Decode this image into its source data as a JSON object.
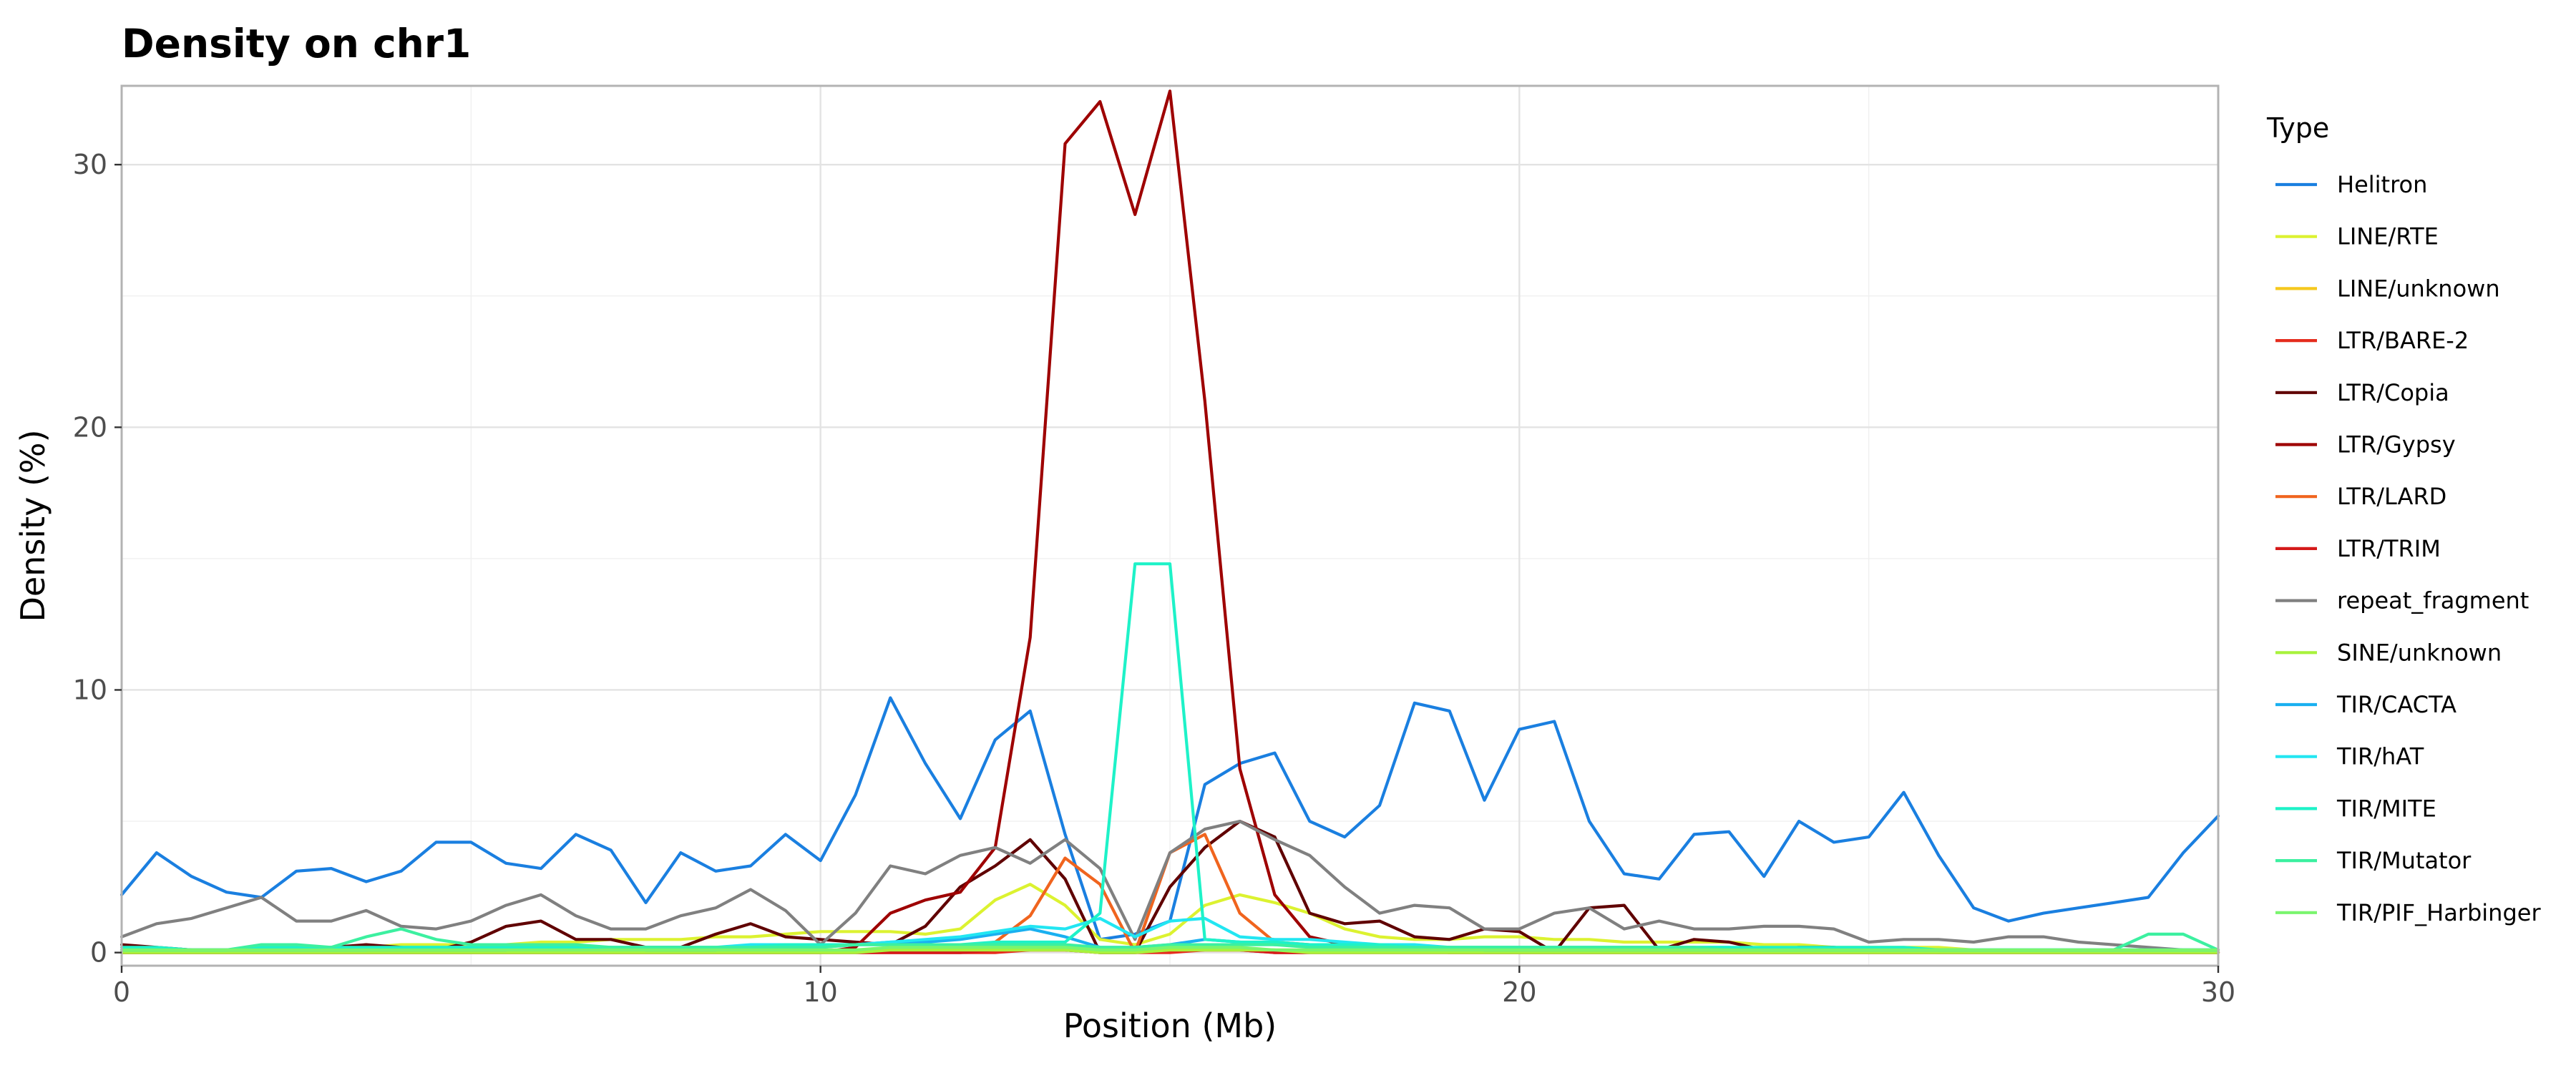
{
  "chart_data": {
    "type": "line",
    "title": "Density on chr1",
    "xlabel": "Position (Mb)",
    "ylabel": "Density (%)",
    "xlim": [
      0,
      30
    ],
    "ylim": [
      -0.5,
      33
    ],
    "xticks": [
      0,
      10,
      20,
      30
    ],
    "yticks": [
      0,
      10,
      20,
      30
    ],
    "grid": true,
    "legend": {
      "title": "Type",
      "placement": "right"
    },
    "x": [
      0,
      0.5,
      1,
      1.5,
      2,
      2.5,
      3,
      3.5,
      4,
      4.5,
      5,
      5.5,
      6,
      6.5,
      7,
      7.5,
      8,
      8.5,
      9,
      9.5,
      10,
      10.5,
      11,
      11.5,
      12,
      12.5,
      13,
      13.5,
      14,
      14.5,
      15,
      15.5,
      16,
      16.5,
      17,
      17.5,
      18,
      18.5,
      19,
      19.5,
      20,
      20.5,
      21,
      21.5,
      22,
      22.5,
      23,
      23.5,
      24,
      24.5,
      25,
      25.5,
      26,
      26.5,
      27,
      27.5,
      28,
      28.5,
      29,
      29.5,
      30
    ],
    "series": [
      {
        "name": "Helitron",
        "color": "#1a7fe0",
        "values": [
          2.2,
          3.8,
          2.9,
          2.3,
          2.1,
          3.1,
          3.2,
          2.7,
          3.1,
          4.2,
          4.2,
          3.4,
          3.2,
          4.5,
          3.9,
          1.9,
          3.8,
          3.1,
          3.3,
          4.5,
          3.5,
          6.0,
          9.7,
          7.2,
          5.1,
          8.1,
          9.2,
          4.5,
          0.5,
          0.7,
          1.2,
          6.4,
          7.2,
          7.6,
          5.0,
          4.4,
          5.6,
          9.5,
          9.2,
          5.8,
          8.5,
          8.8,
          5.0,
          3.0,
          2.8,
          4.5,
          4.6,
          2.9,
          5.0,
          4.2,
          4.4,
          6.1,
          3.7,
          1.7,
          1.2,
          1.5,
          1.7,
          1.9,
          2.1,
          3.8,
          5.2
        ]
      },
      {
        "name": "LINE/RTE",
        "color": "#dcf230",
        "values": [
          0.1,
          0.1,
          0.1,
          0.1,
          0.1,
          0.1,
          0.1,
          0.2,
          0.3,
          0.3,
          0.3,
          0.3,
          0.4,
          0.4,
          0.5,
          0.5,
          0.5,
          0.6,
          0.6,
          0.7,
          0.8,
          0.8,
          0.8,
          0.7,
          0.9,
          2.0,
          2.6,
          1.8,
          0.5,
          0.3,
          0.7,
          1.8,
          2.2,
          1.9,
          1.5,
          0.9,
          0.6,
          0.5,
          0.5,
          0.6,
          0.6,
          0.5,
          0.5,
          0.4,
          0.4,
          0.4,
          0.4,
          0.3,
          0.3,
          0.2,
          0.2,
          0.2,
          0.2,
          0.1,
          0.1,
          0.1,
          0.1,
          0.1,
          0.1,
          0.1,
          0.1
        ]
      },
      {
        "name": "LINE/unknown",
        "color": "#f5c81e",
        "values": [
          0.0,
          0.0,
          0.0,
          0.0,
          0.0,
          0.0,
          0.0,
          0.0,
          0.0,
          0.0,
          0.0,
          0.0,
          0.0,
          0.0,
          0.0,
          0.0,
          0.0,
          0.0,
          0.0,
          0.0,
          0.1,
          0.1,
          0.1,
          0.1,
          0.1,
          0.1,
          0.1,
          0.1,
          0.0,
          0.0,
          0.1,
          0.1,
          0.1,
          0.1,
          0.1,
          0.1,
          0.1,
          0.1,
          0.0,
          0.0,
          0.0,
          0.0,
          0.0,
          0.0,
          0.0,
          0.0,
          0.0,
          0.0,
          0.0,
          0.0,
          0.0,
          0.0,
          0.0,
          0.0,
          0.0,
          0.0,
          0.0,
          0.0,
          0.0,
          0.0,
          0.0
        ]
      },
      {
        "name": "LTR/BARE-2",
        "color": "#e52d1e",
        "values": [
          0.0,
          0.0,
          0.0,
          0.0,
          0.0,
          0.0,
          0.0,
          0.0,
          0.0,
          0.0,
          0.0,
          0.0,
          0.0,
          0.0,
          0.0,
          0.0,
          0.0,
          0.0,
          0.0,
          0.0,
          0.0,
          0.0,
          0.0,
          0.0,
          0.0,
          0.0,
          0.1,
          0.1,
          0.0,
          0.0,
          0.0,
          0.1,
          0.1,
          0.0,
          0.0,
          0.0,
          0.0,
          0.0,
          0.0,
          0.0,
          0.0,
          0.0,
          0.0,
          0.0,
          0.0,
          0.0,
          0.0,
          0.0,
          0.0,
          0.0,
          0.0,
          0.0,
          0.0,
          0.0,
          0.0,
          0.0,
          0.0,
          0.0,
          0.0,
          0.0,
          0.0
        ]
      },
      {
        "name": "LTR/Copia",
        "color": "#600000",
        "values": [
          0.3,
          0.2,
          0.1,
          0.1,
          0.1,
          0.1,
          0.2,
          0.3,
          0.2,
          0.1,
          0.4,
          1.0,
          1.2,
          0.5,
          0.5,
          0.2,
          0.2,
          0.7,
          1.1,
          0.6,
          0.5,
          0.4,
          0.3,
          1.0,
          2.5,
          3.3,
          4.3,
          2.8,
          0.0,
          0.0,
          2.5,
          4.0,
          5.0,
          4.4,
          1.5,
          1.1,
          1.2,
          0.6,
          0.5,
          0.9,
          0.8,
          0.0,
          1.7,
          1.8,
          0.1,
          0.5,
          0.4,
          0.1,
          0.2,
          0.2,
          0.1,
          0.1,
          0.0,
          0.0,
          0.0,
          0.0,
          0.0,
          0.0,
          0.0,
          0.0,
          0.0
        ]
      },
      {
        "name": "LTR/Gypsy",
        "color": "#9e0000",
        "values": [
          0.0,
          0.0,
          0.0,
          0.0,
          0.0,
          0.0,
          0.0,
          0.0,
          0.0,
          0.0,
          0.0,
          0.0,
          0.0,
          0.0,
          0.0,
          0.0,
          0.0,
          0.0,
          0.0,
          0.0,
          0.0,
          0.2,
          1.5,
          2.0,
          2.3,
          4.0,
          12.0,
          30.8,
          32.4,
          28.1,
          32.8,
          21.0,
          7.0,
          2.2,
          0.6,
          0.3,
          0.2,
          0.1,
          0.0,
          0.0,
          0.0,
          0.0,
          0.0,
          0.0,
          0.0,
          0.0,
          0.0,
          0.0,
          0.0,
          0.0,
          0.0,
          0.0,
          0.0,
          0.0,
          0.0,
          0.0,
          0.0,
          0.0,
          0.0,
          0.0,
          0.0
        ]
      },
      {
        "name": "LTR/LARD",
        "color": "#f0641e",
        "values": [
          0.0,
          0.0,
          0.0,
          0.0,
          0.0,
          0.0,
          0.0,
          0.0,
          0.0,
          0.0,
          0.0,
          0.0,
          0.0,
          0.0,
          0.0,
          0.0,
          0.0,
          0.0,
          0.0,
          0.0,
          0.0,
          0.1,
          0.1,
          0.1,
          0.2,
          0.4,
          1.4,
          3.6,
          2.6,
          0.0,
          3.8,
          4.5,
          1.5,
          0.4,
          0.3,
          0.2,
          0.1,
          0.1,
          0.0,
          0.0,
          0.0,
          0.0,
          0.0,
          0.0,
          0.0,
          0.0,
          0.0,
          0.0,
          0.0,
          0.0,
          0.0,
          0.0,
          0.0,
          0.0,
          0.0,
          0.0,
          0.0,
          0.0,
          0.0,
          0.0,
          0.0
        ]
      },
      {
        "name": "LTR/TRIM",
        "color": "#d41a1a",
        "values": [
          0.0,
          0.0,
          0.0,
          0.0,
          0.0,
          0.0,
          0.0,
          0.0,
          0.0,
          0.0,
          0.0,
          0.0,
          0.0,
          0.0,
          0.0,
          0.0,
          0.0,
          0.0,
          0.0,
          0.0,
          0.0,
          0.0,
          0.0,
          0.0,
          0.0,
          0.1,
          0.1,
          0.1,
          0.0,
          0.0,
          0.1,
          0.1,
          0.1,
          0.0,
          0.0,
          0.0,
          0.0,
          0.0,
          0.0,
          0.0,
          0.0,
          0.0,
          0.0,
          0.0,
          0.0,
          0.0,
          0.0,
          0.0,
          0.0,
          0.0,
          0.0,
          0.0,
          0.0,
          0.0,
          0.0,
          0.0,
          0.0,
          0.0,
          0.0,
          0.0,
          0.0
        ]
      },
      {
        "name": "repeat_fragment",
        "color": "#808080",
        "values": [
          0.6,
          1.1,
          1.3,
          1.7,
          2.1,
          1.2,
          1.2,
          1.6,
          1.0,
          0.9,
          1.2,
          1.8,
          2.2,
          1.4,
          0.9,
          0.9,
          1.4,
          1.7,
          2.4,
          1.6,
          0.3,
          1.5,
          3.3,
          3.0,
          3.7,
          4.0,
          3.4,
          4.3,
          3.2,
          0.5,
          3.8,
          4.7,
          5.0,
          4.3,
          3.7,
          2.5,
          1.5,
          1.8,
          1.7,
          0.9,
          0.9,
          1.5,
          1.7,
          0.9,
          1.2,
          0.9,
          0.9,
          1.0,
          1.0,
          0.9,
          0.4,
          0.5,
          0.5,
          0.4,
          0.6,
          0.6,
          0.4,
          0.3,
          0.2,
          0.1,
          0.1
        ]
      },
      {
        "name": "SINE/unknown",
        "color": "#a8f23c",
        "values": [
          0.0,
          0.0,
          0.0,
          0.0,
          0.0,
          0.0,
          0.0,
          0.0,
          0.0,
          0.0,
          0.0,
          0.0,
          0.0,
          0.0,
          0.0,
          0.0,
          0.0,
          0.0,
          0.0,
          0.0,
          0.0,
          0.0,
          0.1,
          0.1,
          0.1,
          0.1,
          0.1,
          0.1,
          0.0,
          0.0,
          0.1,
          0.1,
          0.1,
          0.1,
          0.0,
          0.0,
          0.0,
          0.0,
          0.0,
          0.0,
          0.0,
          0.0,
          0.0,
          0.0,
          0.0,
          0.0,
          0.0,
          0.0,
          0.0,
          0.0,
          0.0,
          0.0,
          0.0,
          0.0,
          0.0,
          0.0,
          0.0,
          0.0,
          0.0,
          0.0,
          0.0
        ]
      },
      {
        "name": "TIR/CACTA",
        "color": "#1ab0f0",
        "values": [
          0.1,
          0.1,
          0.1,
          0.1,
          0.1,
          0.1,
          0.1,
          0.1,
          0.1,
          0.1,
          0.1,
          0.1,
          0.2,
          0.2,
          0.2,
          0.1,
          0.1,
          0.1,
          0.2,
          0.2,
          0.2,
          0.3,
          0.4,
          0.4,
          0.5,
          0.7,
          0.9,
          0.6,
          0.2,
          0.2,
          0.3,
          0.5,
          0.4,
          0.3,
          0.3,
          0.2,
          0.2,
          0.2,
          0.2,
          0.1,
          0.1,
          0.1,
          0.1,
          0.1,
          0.1,
          0.1,
          0.1,
          0.1,
          0.1,
          0.1,
          0.1,
          0.1,
          0.1,
          0.1,
          0.1,
          0.1,
          0.1,
          0.1,
          0.1,
          0.1,
          0.1
        ]
      },
      {
        "name": "TIR/hAT",
        "color": "#22e6f2",
        "values": [
          0.1,
          0.1,
          0.1,
          0.1,
          0.1,
          0.1,
          0.1,
          0.1,
          0.2,
          0.2,
          0.2,
          0.2,
          0.2,
          0.2,
          0.2,
          0.2,
          0.2,
          0.2,
          0.3,
          0.3,
          0.3,
          0.3,
          0.4,
          0.5,
          0.6,
          0.8,
          1.0,
          0.9,
          1.3,
          0.6,
          1.2,
          1.3,
          0.6,
          0.5,
          0.5,
          0.4,
          0.3,
          0.3,
          0.2,
          0.2,
          0.2,
          0.2,
          0.2,
          0.2,
          0.2,
          0.2,
          0.2,
          0.1,
          0.1,
          0.1,
          0.1,
          0.1,
          0.1,
          0.1,
          0.1,
          0.1,
          0.1,
          0.1,
          0.1,
          0.1,
          0.1
        ]
      },
      {
        "name": "TIR/MITE",
        "color": "#1ef2c8",
        "values": [
          0.2,
          0.2,
          0.1,
          0.1,
          0.2,
          0.2,
          0.2,
          0.2,
          0.2,
          0.2,
          0.2,
          0.2,
          0.2,
          0.2,
          0.2,
          0.2,
          0.2,
          0.2,
          0.2,
          0.3,
          0.3,
          0.3,
          0.3,
          0.3,
          0.3,
          0.4,
          0.4,
          0.4,
          1.5,
          14.8,
          14.8,
          0.5,
          0.4,
          0.4,
          0.3,
          0.3,
          0.3,
          0.2,
          0.2,
          0.2,
          0.2,
          0.2,
          0.2,
          0.2,
          0.2,
          0.2,
          0.2,
          0.2,
          0.2,
          0.2,
          0.2,
          0.2,
          0.1,
          0.1,
          0.1,
          0.1,
          0.1,
          0.1,
          0.1,
          0.1,
          0.1
        ]
      },
      {
        "name": "TIR/Mutator",
        "color": "#3cf0a0",
        "values": [
          0.1,
          0.1,
          0.1,
          0.1,
          0.3,
          0.3,
          0.2,
          0.6,
          0.9,
          0.5,
          0.3,
          0.3,
          0.3,
          0.3,
          0.2,
          0.2,
          0.2,
          0.2,
          0.2,
          0.2,
          0.2,
          0.3,
          0.3,
          0.3,
          0.3,
          0.3,
          0.3,
          0.3,
          0.2,
          0.2,
          0.3,
          0.3,
          0.3,
          0.3,
          0.2,
          0.2,
          0.2,
          0.2,
          0.2,
          0.2,
          0.2,
          0.2,
          0.2,
          0.2,
          0.2,
          0.2,
          0.1,
          0.1,
          0.1,
          0.1,
          0.1,
          0.1,
          0.1,
          0.1,
          0.1,
          0.1,
          0.1,
          0.1,
          0.7,
          0.7,
          0.1
        ]
      },
      {
        "name": "TIR/PIF_Harbinger",
        "color": "#7af56e",
        "values": [
          0.1,
          0.1,
          0.1,
          0.1,
          0.1,
          0.1,
          0.1,
          0.1,
          0.1,
          0.1,
          0.1,
          0.1,
          0.1,
          0.1,
          0.1,
          0.1,
          0.1,
          0.1,
          0.1,
          0.1,
          0.1,
          0.1,
          0.2,
          0.2,
          0.2,
          0.2,
          0.2,
          0.2,
          0.1,
          0.1,
          0.2,
          0.2,
          0.2,
          0.1,
          0.1,
          0.1,
          0.1,
          0.1,
          0.1,
          0.1,
          0.1,
          0.1,
          0.1,
          0.1,
          0.1,
          0.1,
          0.1,
          0.1,
          0.1,
          0.1,
          0.1,
          0.1,
          0.1,
          0.1,
          0.1,
          0.1,
          0.1,
          0.1,
          0.1,
          0.1,
          0.1
        ]
      }
    ]
  }
}
